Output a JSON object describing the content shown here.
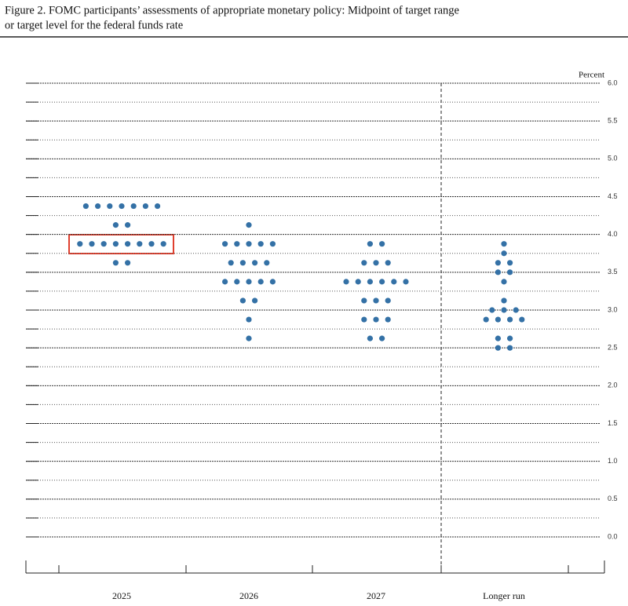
{
  "chart_data": {
    "type": "dot",
    "title": [
      "Figure 2.  FOMC participants’ assessments of appropriate monetary policy:  Midpoint of target range",
      "or target level for the federal funds rate"
    ],
    "y_label": "Percent",
    "categories": [
      "2025",
      "2026",
      "2027",
      "Longer run"
    ],
    "values": [
      [
        4.375,
        4.375,
        4.375,
        4.375,
        4.375,
        4.375,
        4.375,
        4.125,
        4.125,
        3.875,
        3.875,
        3.875,
        3.875,
        3.875,
        3.875,
        3.875,
        3.875,
        3.625,
        3.625
      ],
      [
        4.125,
        3.875,
        3.875,
        3.875,
        3.875,
        3.875,
        3.625,
        3.625,
        3.625,
        3.625,
        3.375,
        3.375,
        3.375,
        3.375,
        3.375,
        3.125,
        3.125,
        2.875,
        2.625
      ],
      [
        3.875,
        3.875,
        3.625,
        3.625,
        3.625,
        3.375,
        3.375,
        3.375,
        3.375,
        3.375,
        3.375,
        3.125,
        3.125,
        3.125,
        2.875,
        2.875,
        2.875,
        2.625,
        2.625
      ],
      [
        3.875,
        3.75,
        3.625,
        3.625,
        3.5,
        3.5,
        3.375,
        3.125,
        3.0,
        3.0,
        3.0,
        2.875,
        2.875,
        2.875,
        2.875,
        2.625,
        2.625,
        2.5,
        2.5
      ]
    ],
    "color": "#3471a6",
    "ylim": [
      0,
      6
    ],
    "yticks": [
      {
        "value": 0,
        "label": "0.0"
      },
      0.5,
      {
        "value": 1,
        "label": "1.0"
      },
      1.5,
      {
        "value": 2,
        "label": "2.0"
      },
      2.5,
      {
        "value": 3,
        "label": "3.0"
      },
      3.5,
      {
        "value": 4,
        "label": "4.0"
      },
      4.5,
      {
        "value": 5,
        "label": "5.0"
      },
      5.5,
      {
        "value": 6,
        "label": "6.0"
      }
    ],
    "minor_yticks": [
      0.25,
      0.75,
      1.25,
      1.75,
      2.25,
      2.75,
      3.25,
      3.75,
      4.25,
      4.75,
      5.25,
      5.75
    ],
    "grid": true
  }
}
